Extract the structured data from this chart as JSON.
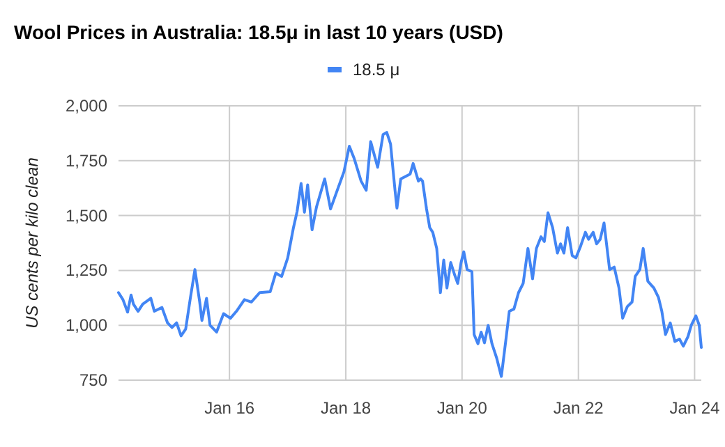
{
  "chart_data": {
    "type": "line",
    "title": "Wool Prices in Australia: 18.5μ in last 10 years (USD)",
    "ylabel": "US cents per kilo clean",
    "legend": "top",
    "grid": true,
    "marker": "none",
    "line_style": "solid",
    "xlim": [
      "2014-02-03",
      "2024-02-12"
    ],
    "xticks": [
      {
        "value": "2016-01-01",
        "label": "Jan 16"
      },
      {
        "value": "2018-01-01",
        "label": "Jan 18"
      },
      {
        "value": "2020-01-01",
        "label": "Jan 20"
      },
      {
        "value": "2022-01-01",
        "label": "Jan 22"
      },
      {
        "value": "2024-01-01",
        "label": "Jan 24"
      }
    ],
    "ylim": [
      750,
      2000
    ],
    "yticks": [
      750,
      {
        "value": 1000,
        "label": "1,000"
      },
      {
        "value": 1250,
        "label": "1,250"
      },
      {
        "value": 1500,
        "label": "1,500"
      },
      {
        "value": 1750,
        "label": "1,750"
      },
      {
        "value": 2000,
        "label": "2,000"
      }
    ],
    "series": [
      {
        "name": "18.5 μ",
        "color": "#4285f4",
        "x": [
          "2014-02-03",
          "2014-03-03",
          "2014-04-01",
          "2014-04-23",
          "2014-05-08",
          "2014-06-06",
          "2014-07-05",
          "2014-08-25",
          "2014-09-16",
          "2014-11-03",
          "2014-12-08",
          "2015-01-05",
          "2015-02-03",
          "2015-03-03",
          "2015-04-01",
          "2015-04-30",
          "2015-05-29",
          "2015-06-28",
          "2015-07-12",
          "2015-08-10",
          "2015-09-01",
          "2015-10-12",
          "2015-11-25",
          "2016-01-07",
          "2016-02-14",
          "2016-04-04",
          "2016-05-18",
          "2016-07-09",
          "2016-09-13",
          "2016-10-18",
          "2016-11-24",
          "2017-01-01",
          "2017-02-06",
          "2017-03-01",
          "2017-03-26",
          "2017-04-16",
          "2017-05-06",
          "2017-06-03",
          "2017-07-01",
          "2017-08-21",
          "2017-09-27",
          "2017-11-10",
          "2017-12-20",
          "2018-01-23",
          "2018-02-21",
          "2018-04-07",
          "2018-05-09",
          "2018-06-06",
          "2018-07-20",
          "2018-08-23",
          "2018-09-15",
          "2018-10-09",
          "2018-11-06",
          "2018-11-18",
          "2018-12-12",
          "2019-02-09",
          "2019-02-28",
          "2019-04-02",
          "2019-04-15",
          "2019-04-28",
          "2019-05-23",
          "2019-06-12",
          "2019-07-01",
          "2019-07-26",
          "2019-08-18",
          "2019-09-08",
          "2019-09-28",
          "2019-10-22",
          "2019-11-14",
          "2019-12-05",
          "2019-12-26",
          "2020-01-12",
          "2020-02-02",
          "2020-03-03",
          "2020-03-17",
          "2020-04-10",
          "2020-04-30",
          "2020-05-21",
          "2020-06-13",
          "2020-07-07",
          "2020-08-05",
          "2020-09-04",
          "2020-10-03",
          "2020-10-24",
          "2020-11-22",
          "2020-12-21",
          "2021-01-19",
          "2021-02-18",
          "2021-03-19",
          "2021-04-12",
          "2021-05-11",
          "2021-06-01",
          "2021-06-24",
          "2021-07-23",
          "2021-08-22",
          "2021-09-11",
          "2021-10-02",
          "2021-10-25",
          "2021-11-23",
          "2021-12-16",
          "2022-01-15",
          "2022-02-14",
          "2022-03-06",
          "2022-04-04",
          "2022-04-25",
          "2022-05-18",
          "2022-06-11",
          "2022-07-16",
          "2022-08-14",
          "2022-09-13",
          "2022-10-06",
          "2022-11-04",
          "2022-12-04",
          "2022-12-24",
          "2023-01-22",
          "2023-02-12",
          "2023-03-13",
          "2023-04-20",
          "2023-05-19",
          "2023-06-09",
          "2023-07-02",
          "2023-08-01",
          "2023-08-30",
          "2023-09-28",
          "2023-10-22",
          "2023-11-20",
          "2023-12-11",
          "2024-01-09",
          "2024-01-30",
          "2024-02-12"
        ],
        "values": [
          1149,
          1117,
          1060,
          1138,
          1096,
          1064,
          1096,
          1123,
          1064,
          1081,
          1011,
          990,
          1011,
          952,
          983,
          1123,
          1254,
          1106,
          1022,
          1123,
          1000,
          969,
          1053,
          1032,
          1064,
          1117,
          1106,
          1149,
          1153,
          1238,
          1223,
          1307,
          1445,
          1519,
          1646,
          1515,
          1640,
          1435,
          1540,
          1667,
          1530,
          1619,
          1699,
          1816,
          1763,
          1657,
          1615,
          1837,
          1720,
          1869,
          1879,
          1826,
          1615,
          1534,
          1667,
          1689,
          1737,
          1657,
          1667,
          1657,
          1530,
          1445,
          1424,
          1350,
          1149,
          1297,
          1170,
          1286,
          1233,
          1191,
          1286,
          1335,
          1254,
          1244,
          958,
          916,
          969,
          920,
          1000,
          916,
          852,
          767,
          937,
          1064,
          1074,
          1149,
          1191,
          1350,
          1212,
          1350,
          1403,
          1382,
          1513,
          1445,
          1329,
          1371,
          1329,
          1445,
          1318,
          1307,
          1361,
          1424,
          1392,
          1424,
          1371,
          1392,
          1466,
          1254,
          1265,
          1170,
          1032,
          1085,
          1106,
          1223,
          1254,
          1350,
          1201,
          1170,
          1127,
          1064,
          958,
          1011,
          926,
          937,
          905,
          948,
          1000,
          1043,
          1000,
          899
        ]
      }
    ]
  }
}
